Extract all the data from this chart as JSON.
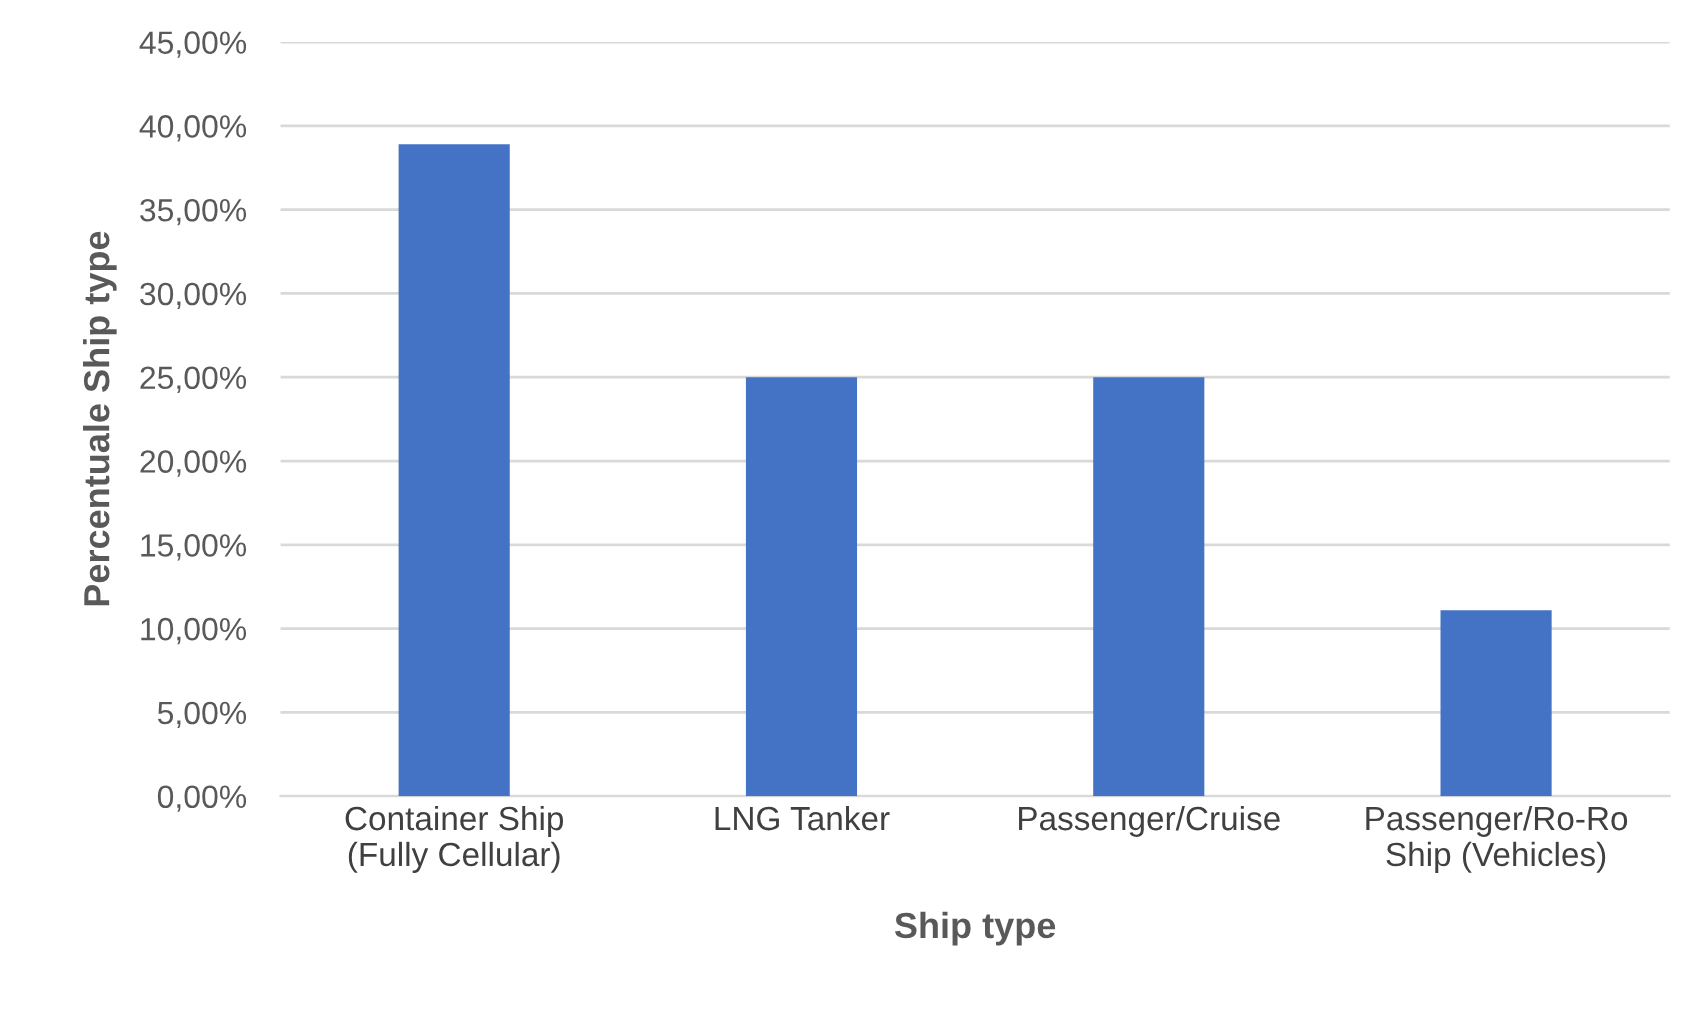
{
  "chart_data": {
    "type": "bar",
    "xlabel": "Ship type",
    "ylabel": "Percentuale Ship type",
    "categories": [
      "Container Ship\n(Fully Cellular)",
      "LNG Tanker",
      "Passenger/Cruise",
      "Passenger/Ro-Ro\nShip (Vehicles)"
    ],
    "values": [
      38.9,
      25,
      25,
      11.1
    ],
    "color": "#4472c4",
    "ylim": [
      0,
      45
    ],
    "yticks": [
      {
        "value": 0,
        "label": "0,00%"
      },
      {
        "value": 5,
        "label": "5,00%"
      },
      {
        "value": 10,
        "label": "10,00%"
      },
      {
        "value": 15,
        "label": "15,00%"
      },
      {
        "value": 20,
        "label": "20,00%"
      },
      {
        "value": 25,
        "label": "25,00%"
      },
      {
        "value": 30,
        "label": "30,00%"
      },
      {
        "value": 35,
        "label": "35,00%"
      },
      {
        "value": 40,
        "label": "40,00%"
      },
      {
        "value": 45,
        "label": "45,00%"
      }
    ],
    "grid": "y",
    "legend": false
  }
}
